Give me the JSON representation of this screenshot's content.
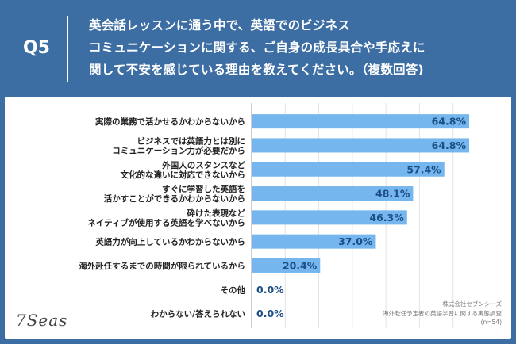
{
  "header": {
    "question_label": "Q5",
    "question_lines": [
      "英会話レッスンに通う中で、英語でのビジネス",
      "コミュニケーションに関する、ご自身の成長具合や手応えに",
      "関して不安を感じている理由を教えてください。（複数回答)"
    ]
  },
  "footer": {
    "logo": "7Seas",
    "source_lines": [
      "株式会社セブンシーズ",
      "海外赴任予定者の英語学習に関する実態調査",
      "(n=54)"
    ]
  },
  "colors": {
    "background": "#3d6ea3",
    "bar": "#74b6ed",
    "value_label": "#1d4f86"
  },
  "chart_data": {
    "type": "bar",
    "orientation": "horizontal",
    "categories": [
      [
        "実際の業務で活かせるかわからないから"
      ],
      [
        "ビジネスでは英語力とは別に",
        "コミュニケーション力が必要だから"
      ],
      [
        "外国人のスタンスなど",
        "文化的な違いに対応できないから"
      ],
      [
        "すぐに学習した英語を",
        "活かすことができるかわからないから"
      ],
      [
        "砕けた表現など",
        "ネイティブが使用する英語を学べないから"
      ],
      [
        "英語力が向上しているかわからないから"
      ],
      [
        "海外赴任するまでの時間が限られているから"
      ],
      [
        "その他"
      ],
      [
        "わからない/答えられない"
      ]
    ],
    "values": [
      64.8,
      64.8,
      57.4,
      48.1,
      46.3,
      37.0,
      20.4,
      0.0,
      0.0
    ],
    "value_labels": [
      "64.8%",
      "64.8%",
      "57.4%",
      "48.1%",
      "46.3%",
      "37.0%",
      "20.4%",
      "0.0%",
      "0.0%"
    ],
    "xlim": [
      0,
      70
    ],
    "grid": true
  }
}
